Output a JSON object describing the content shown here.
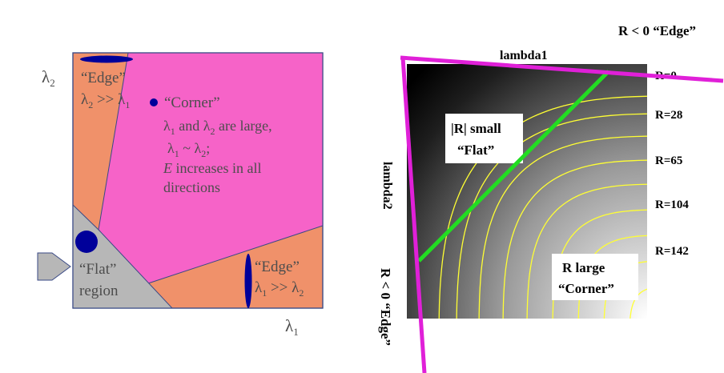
{
  "left": {
    "axis_y": "λ",
    "axis_y_sub": "2",
    "axis_x": "λ",
    "axis_x_sub": "1",
    "edge_top": {
      "title": "“Edge”",
      "cond_a": "λ",
      "cond_a_sub": "2",
      "cond_op": " >> ",
      "cond_b": "λ",
      "cond_b_sub": "1"
    },
    "corner": {
      "title": "“Corner”",
      "l1": "λ",
      "l1_sub": "1",
      "and": " and ",
      "l2": "λ",
      "l2_sub": "2",
      "are_large": " are large,",
      "sim_a": "λ",
      "sim_a_sub": "1",
      "sim_op": " ~ ",
      "sim_b": "λ",
      "sim_b_sub": "2",
      "sim_end": ";",
      "e_var": "E",
      "e_rest": " increases in all",
      "e_line2": "directions"
    },
    "flat": {
      "title": "“Flat”",
      "line2": "region"
    },
    "edge_right": {
      "title": "“Edge”",
      "cond_a": "λ",
      "cond_a_sub": "1",
      "cond_op": " >> ",
      "cond_b": "λ",
      "cond_b_sub": "2"
    },
    "colors": {
      "orange": "#f0916a",
      "magenta": "#f663c8",
      "gray": "#b7b7b7",
      "blue": "#00009a",
      "text": "#4d4d4d"
    }
  },
  "right": {
    "top_label": "R < 0  “Edge”",
    "x_axis_label": "lambda1",
    "y_axis_label": "lambda2",
    "left_bottom_label": "R < 0  “Edge”",
    "flat_box": {
      "line1": "|R| small",
      "line2": "“Flat”"
    },
    "corner_box": {
      "line1": "R large",
      "line2": "“Corner”"
    },
    "contour_labels": [
      "R=0",
      "R=28",
      "R=65",
      "R=104",
      "R=142"
    ],
    "colors": {
      "contour": "#ffff33",
      "magenta": "#e020d8",
      "green": "#22dd22"
    }
  }
}
